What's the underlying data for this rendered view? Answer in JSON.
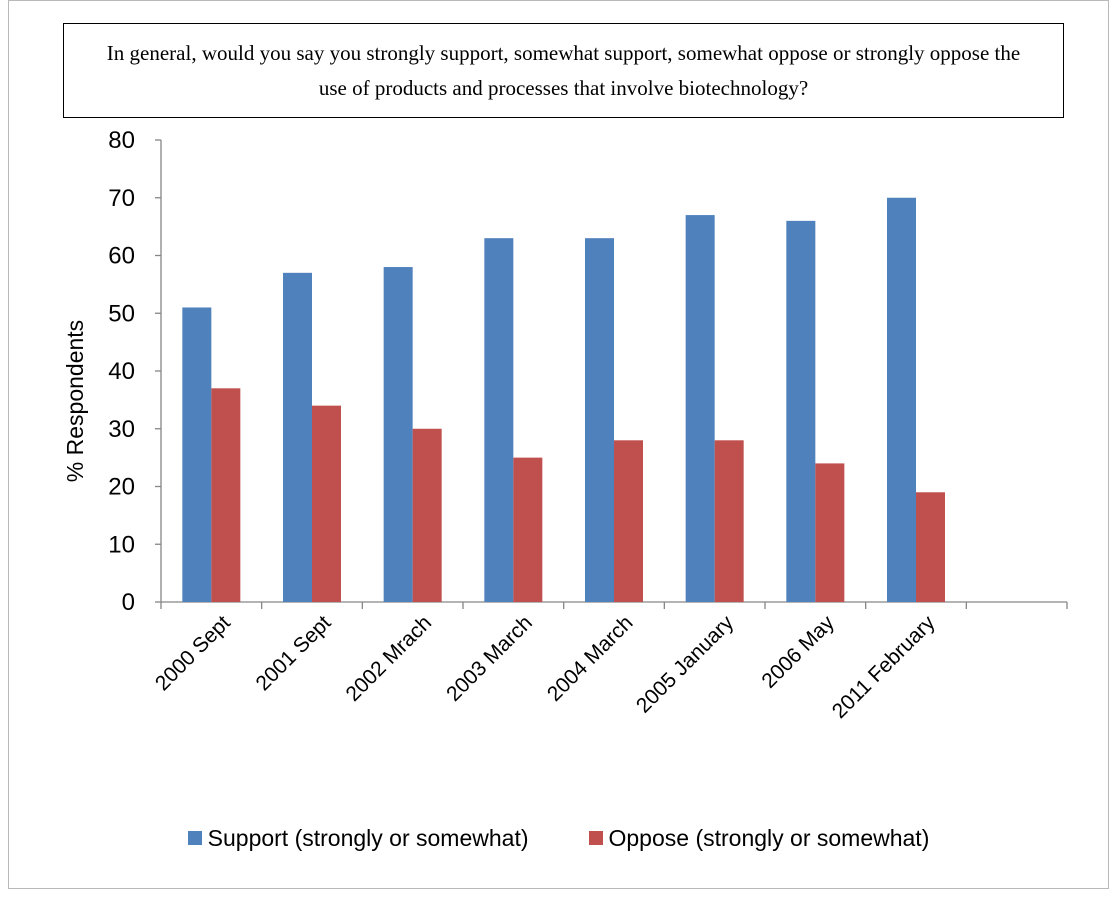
{
  "chart_data": {
    "type": "bar",
    "title": "In general, would you say you strongly support, somewhat support, somewhat oppose or strongly oppose the use of products and processes that involve biotechnology?",
    "ylabel": "% Respondents",
    "xlabel": "",
    "ylim": [
      0,
      80
    ],
    "yticks": [
      0,
      10,
      20,
      30,
      40,
      50,
      60,
      70,
      80
    ],
    "categories": [
      "2000 Sept",
      "2001 Sept",
      "2002 Mrach",
      "2003 March",
      "2004 March",
      "2005 January",
      "2006 May",
      "2011 February"
    ],
    "series": [
      {
        "name": "Support (strongly or somewhat)",
        "color": "#4f81bd",
        "values": [
          51,
          57,
          58,
          63,
          63,
          67,
          66,
          70
        ]
      },
      {
        "name": "Oppose (strongly or somewhat)",
        "color": "#c0504d",
        "values": [
          37,
          34,
          30,
          25,
          28,
          28,
          24,
          19
        ]
      }
    ],
    "legend": "bottom",
    "grid": false
  }
}
